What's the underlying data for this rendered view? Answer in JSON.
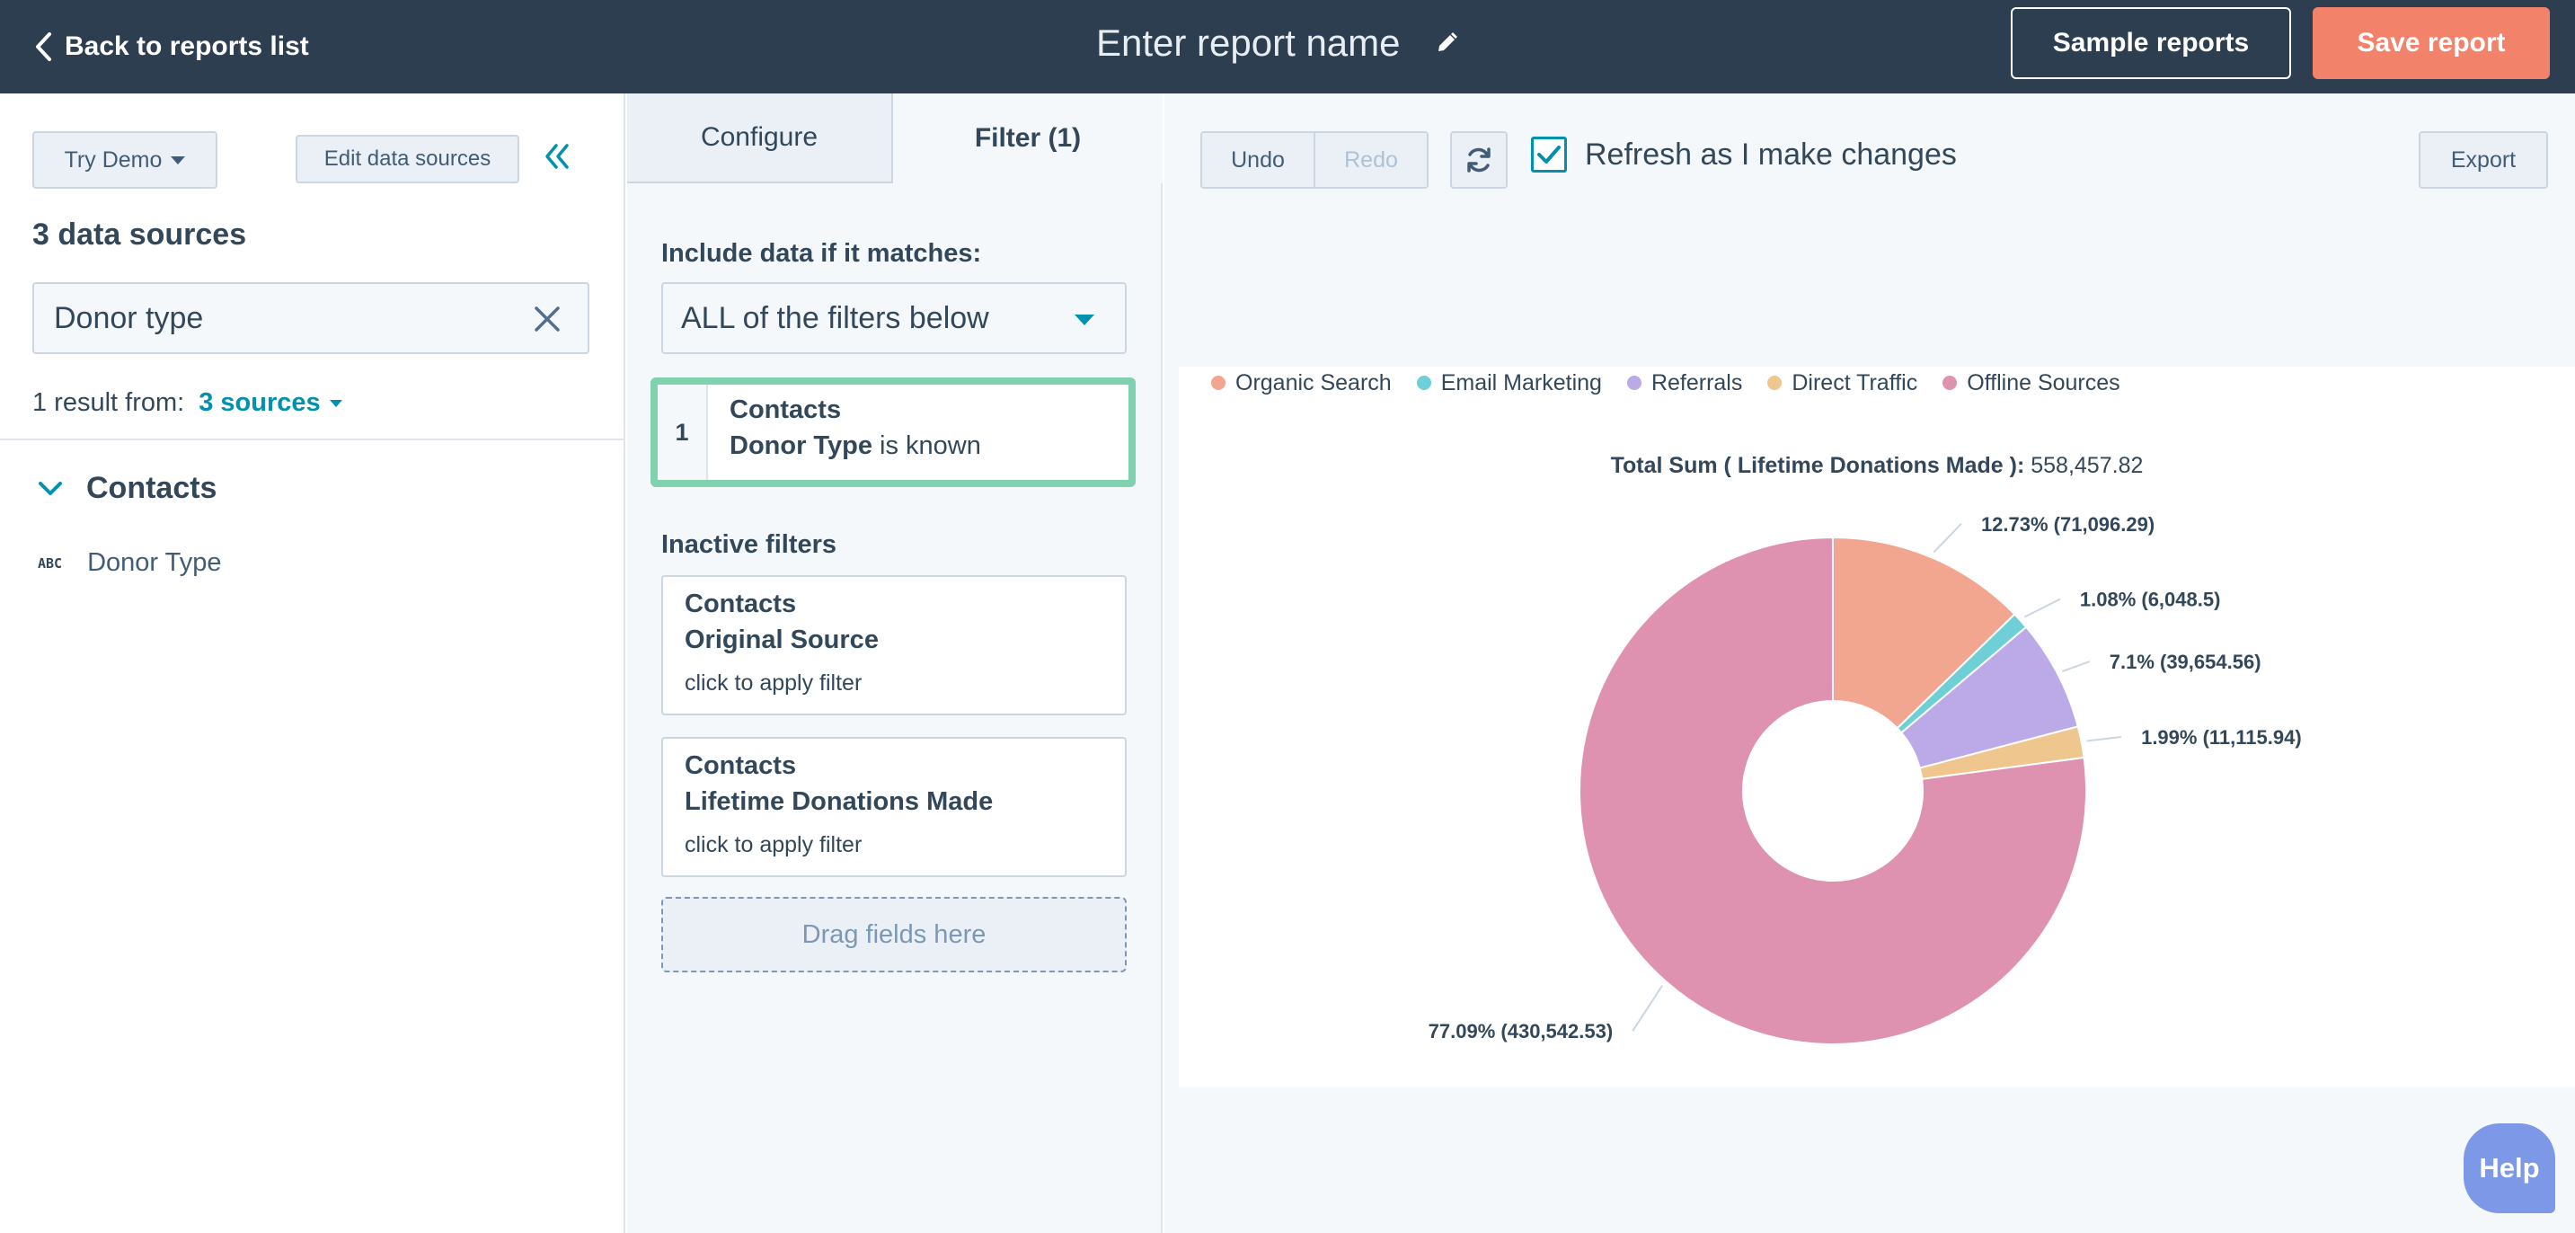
{
  "topbar": {
    "back_label": "Back to reports list",
    "report_name_placeholder": "Enter report name",
    "sample_label": "Sample reports",
    "save_label": "Save report"
  },
  "left": {
    "try_demo_label": "Try Demo",
    "edit_sources_label": "Edit data sources",
    "sources_title": "3 data sources",
    "search_value": "Donor type",
    "result_prefix": "1 result from:",
    "result_sources_link": "3 sources",
    "group_label": "Contacts",
    "field_type_badge": "ABC",
    "field_label": "Donor Type"
  },
  "middle": {
    "tabs": [
      {
        "label": "Configure"
      },
      {
        "label": "Filter (1)"
      }
    ],
    "include_label": "Include data if it matches:",
    "match_value": "ALL of the filters below",
    "active_filter": {
      "number": "1",
      "object": "Contacts",
      "property": "Donor Type",
      "operator": "is known"
    },
    "inactive_label": "Inactive filters",
    "inactive_filters": [
      {
        "object": "Contacts",
        "property": "Original Source",
        "hint": "click to apply filter"
      },
      {
        "object": "Contacts",
        "property": "Lifetime Donations Made",
        "hint": "click to apply filter"
      }
    ],
    "drag_label": "Drag fields here"
  },
  "right": {
    "undo_label": "Undo",
    "redo_label": "Redo",
    "refresh_label": "Refresh as I make changes",
    "refresh_checked": true,
    "export_label": "Export"
  },
  "chart_data": {
    "type": "pie",
    "title_bold": "Total Sum ( Lifetime Donations Made ):",
    "title_value": "558,457.82",
    "legend_position": "top-left",
    "series": [
      {
        "name": "Organic Search",
        "value": 71096.29,
        "label": "12.73% (71,096.29)",
        "color": "#f2a68f"
      },
      {
        "name": "Email Marketing",
        "value": 6048.5,
        "label": "1.08% (6,048.5)",
        "color": "#6fcfd6"
      },
      {
        "name": "Referrals",
        "value": 39654.56,
        "label": "7.1% (39,654.56)",
        "color": "#bba9e8"
      },
      {
        "name": "Direct Traffic",
        "value": 11115.94,
        "label": "1.99% (11,115.94)",
        "color": "#efc68e"
      },
      {
        "name": "Offline Sources",
        "value": 430542.53,
        "label": "77.09% (430,542.53)",
        "color": "#de92b0"
      }
    ]
  },
  "help_label": "Help"
}
